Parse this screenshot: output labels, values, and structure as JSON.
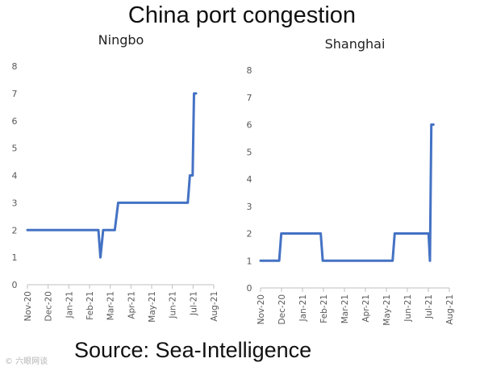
{
  "header": {
    "title": "China port congestion"
  },
  "footer": {
    "source": "Source: Sea-Intelligence",
    "watermark": "© 六眼网谈"
  },
  "colors": {
    "line": "#4472c4",
    "axis": "#bfbfbf",
    "text": "#595959"
  },
  "chart_data": [
    {
      "type": "line",
      "title": "Ningbo",
      "ylim": [
        0,
        8
      ],
      "yticks": [
        0,
        1,
        2,
        3,
        4,
        5,
        6,
        7,
        8
      ],
      "xlim": [
        "2020-11-01",
        "2021-08-01"
      ],
      "xticks": [
        "Nov-20",
        "Dec-20",
        "Jan-21",
        "Feb-21",
        "Mar-21",
        "Apr-21",
        "May-21",
        "Jun-21",
        "Jul-21",
        "Aug-21"
      ],
      "grid": false,
      "legend": "none",
      "series": [
        {
          "x": [
            "2020-11-01",
            "2021-02-13",
            "2021-02-16",
            "2021-02-20",
            "2021-03-09",
            "2021-03-14",
            "2021-06-24",
            "2021-06-27",
            "2021-07-01",
            "2021-07-03",
            "2021-07-06"
          ],
          "y": [
            2,
            2,
            1,
            2,
            2,
            3,
            3,
            4,
            4,
            7,
            7
          ]
        }
      ]
    },
    {
      "type": "line",
      "title": "Shanghai",
      "ylim": [
        0,
        8
      ],
      "yticks": [
        0,
        1,
        2,
        3,
        4,
        5,
        6,
        7,
        8
      ],
      "xlim": [
        "2020-11-01",
        "2021-08-01"
      ],
      "xticks": [
        "Nov-20",
        "Dec-20",
        "Jan-21",
        "Feb-21",
        "Mar-21",
        "Apr-21",
        "May-21",
        "Jun-21",
        "Jul-21",
        "Aug-21"
      ],
      "grid": false,
      "legend": "none",
      "series": [
        {
          "x": [
            "2020-11-01",
            "2020-11-28",
            "2020-12-01",
            "2021-01-27",
            "2021-01-30",
            "2021-05-11",
            "2021-05-14",
            "2021-07-02",
            "2021-07-04",
            "2021-07-06",
            "2021-07-09"
          ],
          "y": [
            1,
            1,
            2,
            2,
            1,
            1,
            2,
            2,
            1,
            6,
            6
          ]
        }
      ]
    }
  ]
}
